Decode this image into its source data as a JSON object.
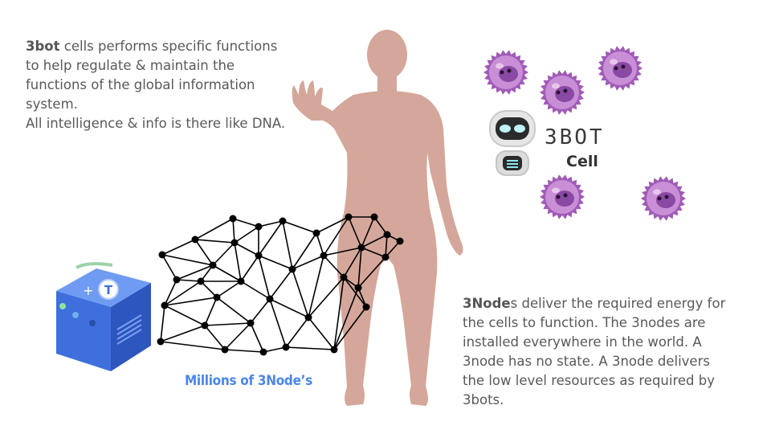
{
  "left_text": {
    "lead": "3bot",
    "line1_rest": " cells performs specific functions",
    "line2": "to help regulate & maintain the",
    "line3": "functions of the global information",
    "line4": "system.",
    "line5": "All intelligence & info is there like DNA."
  },
  "right_text": {
    "lead": "3Node",
    "line1_rest": "s deliver the required energy for",
    "line2": "the cells to function. The 3nodes are",
    "line3": "installed everywhere in the world. A",
    "line4": "3node has no state. A 3node delivers",
    "line5": "the low level resources as required by",
    "line6": "3bots."
  },
  "network_label": "Millions of 3Node’s",
  "bot_logo_text": "3BOT",
  "cell_label": "Cell",
  "server_badge": "+ T",
  "colors": {
    "body": "#d4a79a",
    "server": "#3f6fdc",
    "cell": "#a05ab7",
    "label_blue": "#4a86e8"
  }
}
